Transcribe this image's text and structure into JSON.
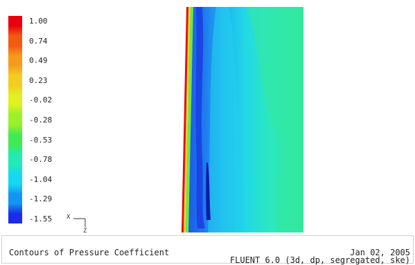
{
  "colormap": {
    "labels": [
      "1.00",
      "0.74",
      "0.49",
      "0.23",
      "-0.02",
      "-0.28",
      "-0.53",
      "-0.78",
      "-1.04",
      "-1.29",
      "-1.55"
    ],
    "colors": [
      "#e8000e",
      "#f25a12",
      "#f59a1b",
      "#f2cc20",
      "#dff21f",
      "#9bf02a",
      "#3fea55",
      "#22ebb6",
      "#15d8f2",
      "#1395f3",
      "#1b2ce8"
    ]
  },
  "axes": {
    "x_label": "X",
    "z_label": "Z"
  },
  "footer": {
    "title": "Contours of Pressure Coefficient",
    "date": "Jan 02, 2005",
    "solver": "FLUENT 6.0 (3d, dp, segregated, ske)"
  }
}
